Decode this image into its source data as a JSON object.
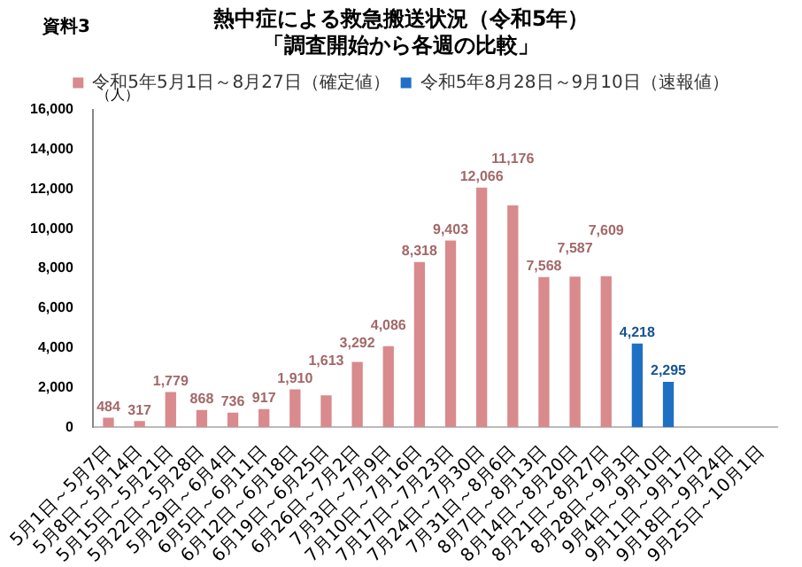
{
  "chart_data": {
    "type": "bar",
    "title": "熱中症による救急搬送状況（令和5年）",
    "subtitle": "「調査開始から各週の比較」",
    "ylabel": "（人）",
    "annotations": [
      "資料3"
    ],
    "categories": [
      "5月1日～5月7日",
      "5月8日～5月14日",
      "5月15日～5月21日",
      "5月22日～5月28日",
      "5月29日～6月4日",
      "6月5日～6月11日",
      "6月12日～6月18日",
      "6月19日～6月25日",
      "6月26日～7月2日",
      "7月3日～7月9日",
      "7月10日～7月16日",
      "7月17日～7月23日",
      "7月24日～7月30日",
      "7月31日～8月6日",
      "8月7日～8月13日",
      "8月14日～8月20日",
      "8月21日～8月27日",
      "8月28日～9月3日",
      "9月4日～9月10日",
      "9月11日～9月17日",
      "9月18日～9月24日",
      "9月25日～10月1日"
    ],
    "series": [
      {
        "name": "令和5年5月1日～8月27日（確定値）",
        "color": "#d98a8c",
        "values": [
          484,
          317,
          1779,
          868,
          736,
          917,
          1910,
          1613,
          3292,
          4086,
          8318,
          9403,
          12066,
          11176,
          7568,
          7587,
          7609,
          null,
          null,
          null,
          null,
          null
        ],
        "value_labels": [
          "484",
          "317",
          "1,779",
          "868",
          "736",
          "917",
          "1,910",
          "1,613",
          "3,292",
          "4,086",
          "8,318",
          "9,403",
          "12,066",
          "11,176",
          "7,568",
          "7,587",
          "7,609",
          null,
          null,
          null,
          null,
          null
        ]
      },
      {
        "name": "令和5年8月28日～9月10日（速報値）",
        "color": "#1f6fc5",
        "values": [
          null,
          null,
          null,
          null,
          null,
          null,
          null,
          null,
          null,
          null,
          null,
          null,
          null,
          null,
          null,
          null,
          null,
          4218,
          2295,
          null,
          null,
          null
        ],
        "value_labels": [
          null,
          null,
          null,
          null,
          null,
          null,
          null,
          null,
          null,
          null,
          null,
          null,
          null,
          null,
          null,
          null,
          null,
          "4,218",
          "2,295",
          null,
          null,
          null
        ]
      }
    ],
    "ylim": [
      0,
      16000
    ],
    "yticks": [
      {
        "value": 0,
        "label": "0"
      },
      {
        "value": 2000,
        "label": "2,000"
      },
      {
        "value": 4000,
        "label": "4,000"
      },
      {
        "value": 6000,
        "label": "6,000"
      },
      {
        "value": 8000,
        "label": "8,000"
      },
      {
        "value": 10000,
        "label": "10,000"
      },
      {
        "value": 12000,
        "label": "12,000"
      },
      {
        "value": 14000,
        "label": "14,000"
      },
      {
        "value": 16000,
        "label": "16,000"
      }
    ],
    "grid": false,
    "legend": "top"
  }
}
